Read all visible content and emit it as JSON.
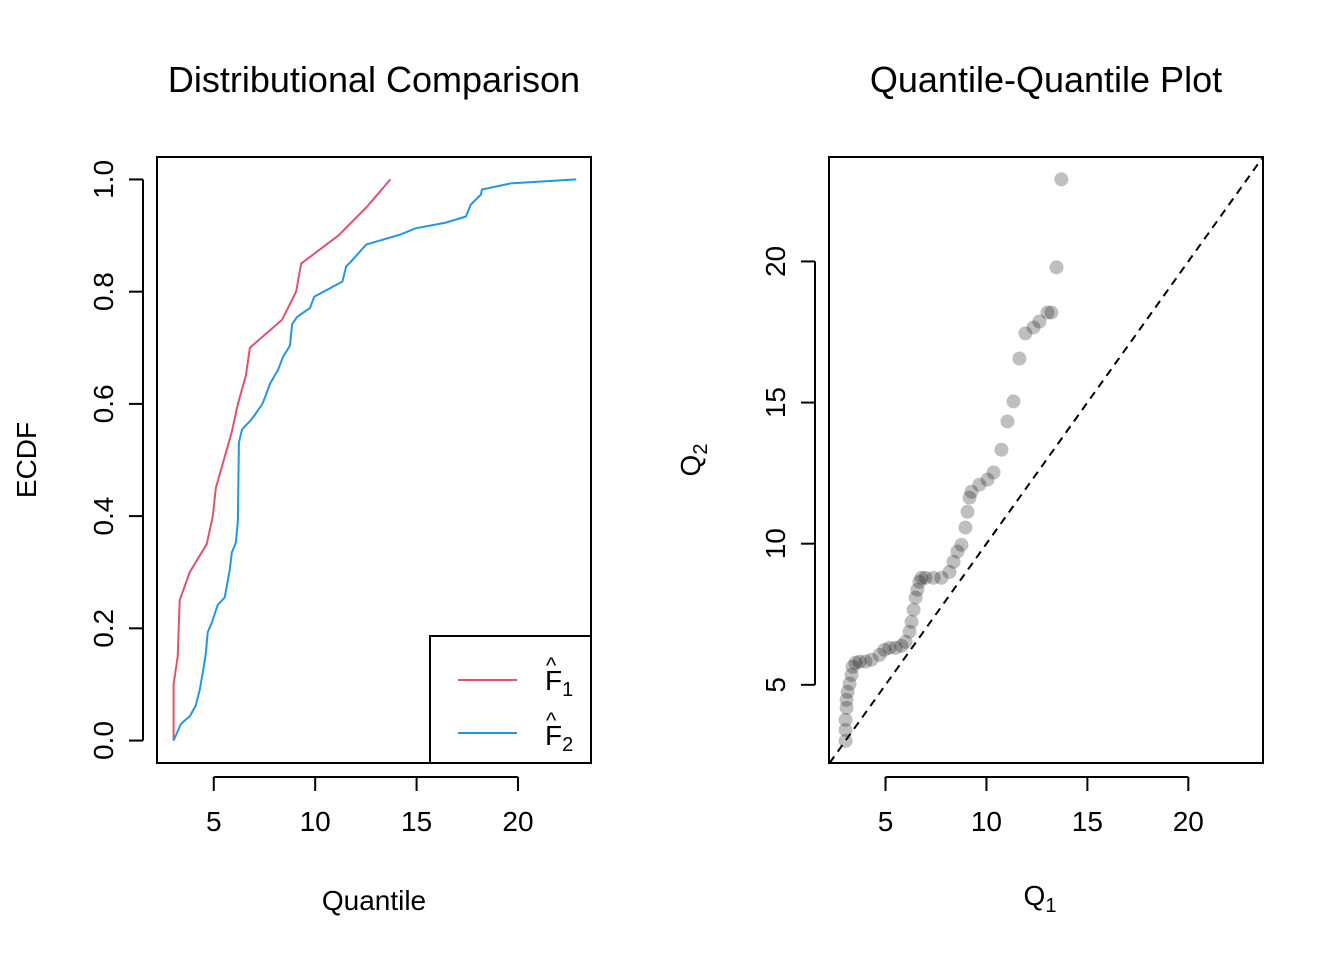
{
  "chart_data": [
    {
      "type": "line",
      "title": "Distributional Comparison",
      "xlabel": "Quantile",
      "ylabel": "ECDF",
      "xlim": [
        2.2,
        23.6
      ],
      "ylim": [
        -0.04,
        1.04
      ],
      "xticks": [
        "5",
        "10",
        "15",
        "20"
      ],
      "xtick_values": [
        5,
        10,
        15,
        20
      ],
      "yticks": [
        "0.0",
        "0.2",
        "0.4",
        "0.6",
        "0.8",
        "1.0"
      ],
      "ytick_values": [
        0,
        0.2,
        0.4,
        0.6,
        0.8,
        1.0
      ],
      "legend": {
        "placement": "bottom-right",
        "entries": [
          {
            "label": "F",
            "hat": "^",
            "sub": "1",
            "color": "#DF536B"
          },
          {
            "label": "F",
            "hat": "^",
            "sub": "2",
            "color": "#2297E6"
          }
        ]
      },
      "series": [
        {
          "name": "F1",
          "color": "#DF536B",
          "x": [
            3.02,
            3.02,
            3.22,
            3.32,
            3.81,
            4.65,
            4.95,
            5.1,
            5.89,
            6.19,
            6.58,
            6.78,
            8.37,
            9.06,
            9.31,
            11.14,
            12.52,
            13.71
          ],
          "y": [
            0,
            0.1,
            0.15,
            0.25,
            0.3,
            0.35,
            0.4,
            0.45,
            0.55,
            0.6,
            0.65,
            0.7,
            0.75,
            0.8,
            0.85,
            0.9,
            0.95,
            1.0
          ]
        },
        {
          "name": "F2",
          "color": "#2297E6",
          "x": [
            3.02,
            3.37,
            3.51,
            3.81,
            4.11,
            4.31,
            4.46,
            4.6,
            4.7,
            4.9,
            5.2,
            5.54,
            5.79,
            5.89,
            6.09,
            6.19,
            6.24,
            6.39,
            6.53,
            6.78,
            7.03,
            7.38,
            7.52,
            7.77,
            8.17,
            8.42,
            8.76,
            8.86,
            9.11,
            9.75,
            9.95,
            11.34,
            11.53,
            11.83,
            12.52,
            14.21,
            14.95,
            16.44,
            17.43,
            17.67,
            18.17,
            18.22,
            19.65,
            22.87
          ],
          "y": [
            0,
            0.029,
            0.034,
            0.043,
            0.062,
            0.091,
            0.121,
            0.153,
            0.193,
            0.21,
            0.242,
            0.255,
            0.305,
            0.335,
            0.353,
            0.392,
            0.531,
            0.554,
            0.56,
            0.569,
            0.581,
            0.599,
            0.611,
            0.636,
            0.661,
            0.684,
            0.704,
            0.742,
            0.755,
            0.771,
            0.791,
            0.818,
            0.845,
            0.856,
            0.884,
            0.902,
            0.913,
            0.923,
            0.934,
            0.955,
            0.973,
            0.982,
            0.993,
            1.0
          ]
        }
      ]
    },
    {
      "type": "scatter",
      "title": "Quantile-Quantile Plot",
      "xlabel": "Q",
      "xlabel_sub": "1",
      "ylabel": "Q",
      "ylabel_sub": "2",
      "xlim": [
        2.2,
        23.7
      ],
      "ylim": [
        2.23,
        23.7
      ],
      "xticks": [
        "5",
        "10",
        "15",
        "20"
      ],
      "xtick_values": [
        5,
        10,
        15,
        20
      ],
      "yticks": [
        "5",
        "10",
        "15",
        "20"
      ],
      "ytick_values": [
        5,
        10,
        15,
        20
      ],
      "reference_line": "y = x (dashed)",
      "point_color": "#00000040",
      "x": [
        3.02,
        3.02,
        3.02,
        3.07,
        3.07,
        3.12,
        3.22,
        3.32,
        3.37,
        3.51,
        3.71,
        4.01,
        4.31,
        4.7,
        4.95,
        5.2,
        5.5,
        5.79,
        5.99,
        6.19,
        6.29,
        6.39,
        6.49,
        6.58,
        6.68,
        6.78,
        6.98,
        7.38,
        7.77,
        8.17,
        8.37,
        8.56,
        8.76,
        8.96,
        9.06,
        9.16,
        9.26,
        9.65,
        10.05,
        10.35,
        10.74,
        11.04,
        11.34,
        11.63,
        11.93,
        12.33,
        12.62,
        13.02,
        13.22,
        13.47,
        13.71
      ],
      "y": [
        3.01,
        3.4,
        3.76,
        4.18,
        4.47,
        4.75,
        5.04,
        5.35,
        5.64,
        5.78,
        5.82,
        5.82,
        5.89,
        6.06,
        6.24,
        6.31,
        6.31,
        6.38,
        6.52,
        6.88,
        7.23,
        7.66,
        8.09,
        8.37,
        8.65,
        8.79,
        8.79,
        8.79,
        8.79,
        9.0,
        9.36,
        9.72,
        9.96,
        10.57,
        11.13,
        11.63,
        11.84,
        12.09,
        12.27,
        12.52,
        13.33,
        14.33,
        15.04,
        16.56,
        17.45,
        17.66,
        17.87,
        18.19,
        18.19,
        19.79,
        22.91
      ]
    }
  ]
}
